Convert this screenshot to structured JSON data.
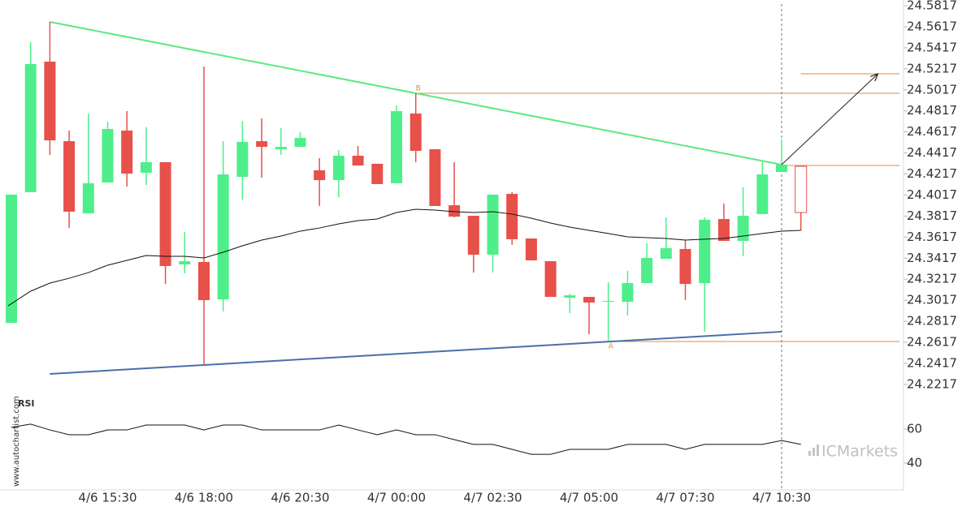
{
  "chart_data": [
    {
      "type": "candlestick",
      "categories": [
        null,
        null,
        null,
        null,
        null,
        "4/6 15:30",
        null,
        null,
        null,
        null,
        "4/6 18:00",
        null,
        null,
        null,
        null,
        "4/6 20:30",
        null,
        null,
        null,
        null,
        "4/7 00:00",
        null,
        null,
        null,
        null,
        "4/7 02:30",
        null,
        null,
        null,
        null,
        "4/7 05:00",
        null,
        null,
        null,
        null,
        "4/7 07:30",
        null,
        null,
        null,
        null,
        "4/7 10:30",
        null
      ],
      "open": [
        24.2802,
        24.4044,
        24.5285,
        24.4529,
        24.3843,
        24.4136,
        24.463,
        24.4229,
        24.4329,
        24.3358,
        24.3381,
        24.3026,
        24.419,
        24.4529,
        24.4452,
        24.4475,
        24.4252,
        24.4159,
        24.4391,
        24.4314,
        24.4129,
        24.4792,
        24.4452,
        24.392,
        24.382,
        24.345,
        24.4028,
        24.3604,
        24.3388,
        24.3041,
        24.3049,
        24.3003,
        24.3003,
        24.318,
        24.3411,
        24.3504,
        24.318,
        24.3789,
        24.3581,
        24.3836,
        24.4236,
        24.429
      ],
      "high": [
        24.4021,
        24.547,
        24.5663,
        24.463,
        24.4792,
        24.4714,
        24.4815,
        24.4661,
        24.4329,
        24.3666,
        24.5239,
        24.4529,
        24.4722,
        24.4745,
        24.4653,
        24.4614,
        24.4368,
        24.4445,
        24.4483,
        24.4314,
        24.4869,
        24.4984,
        24.4452,
        24.4329,
        24.382,
        24.4021,
        24.4044,
        24.3604,
        24.3388,
        24.308,
        24.3049,
        24.3188,
        24.3296,
        24.3558,
        24.3805,
        24.3589,
        24.3805,
        24.3936,
        24.409,
        24.4329,
        24.4545,
        24.429
      ],
      "low": [
        24.2802,
        24.4044,
        24.4398,
        24.3704,
        24.3843,
        24.4136,
        24.4098,
        24.4113,
        24.3172,
        24.3273,
        24.2401,
        24.291,
        24.3974,
        24.4182,
        24.4398,
        24.4475,
        24.3913,
        24.3997,
        24.4298,
        24.4121,
        24.4129,
        24.4329,
        24.3913,
        24.3805,
        24.328,
        24.328,
        24.3543,
        24.3396,
        24.3049,
        24.2895,
        24.2695,
        24.2633,
        24.2872,
        24.318,
        24.3411,
        24.3018,
        24.2718,
        24.3581,
        24.3435,
        24.3836,
        24.4236,
        24.3681
      ],
      "close": [
        24.4021,
        24.5262,
        24.4537,
        24.3859,
        24.4129,
        24.4645,
        24.4221,
        24.4329,
        24.3342,
        24.3388,
        24.3018,
        24.4213,
        24.4522,
        24.4475,
        24.4475,
        24.456,
        24.4159,
        24.4391,
        24.4298,
        24.4121,
        24.4815,
        24.4437,
        24.3913,
        24.3812,
        24.345,
        24.4021,
        24.3597,
        24.3396,
        24.3049,
        24.3064,
        24.2995,
        24.3011,
        24.318,
        24.3419,
        24.3512,
        24.3172,
        24.3782,
        24.3581,
        24.382,
        24.4213,
        24.4306,
        24.3851
      ],
      "up_color": "#4eef8a",
      "down_color": "#e8504a",
      "ma": {
        "color": "#111111",
        "values": [
          24.2964,
          24.3103,
          24.318,
          24.3226,
          24.328,
          24.335,
          24.3396,
          24.3442,
          24.3435,
          24.3435,
          24.3419,
          24.3473,
          24.3535,
          24.3589,
          24.3627,
          24.3674,
          24.3704,
          24.3743,
          24.3774,
          24.3789,
          24.3851,
          24.3882,
          24.3874,
          24.3859,
          24.3851,
          24.3859,
          24.3836,
          24.3797,
          24.3751,
          24.3712,
          24.3681,
          24.3651,
          24.362,
          24.3612,
          24.3604,
          24.3589,
          24.3597,
          24.3604,
          24.3627,
          24.3651,
          24.3674,
          24.3681
        ]
      },
      "trendlines": [
        {
          "color": "#5ee882",
          "start": {
            "index": 2,
            "price": 24.5663
          },
          "end": {
            "index": 40,
            "price": 24.4306
          }
        },
        {
          "color": "#4a6fa8",
          "start": {
            "index": 2,
            "price": 24.2317
          },
          "end": {
            "index": 40,
            "price": 24.2718
          }
        }
      ],
      "levels": [
        {
          "label": "B",
          "value": 24.4984,
          "from": 21
        },
        {
          "label": "A",
          "value": 24.2625,
          "from": 31
        },
        {
          "value": 24.4298,
          "from": 40
        },
        {
          "value": 24.5169,
          "from": 41
        }
      ],
      "level_color": "#e08a3c",
      "arrow": {
        "from": {
          "index": 40,
          "price": 24.4306
        },
        "to": {
          "index": 45,
          "price": 24.5169
        }
      },
      "ylim": [
        24.2093,
        24.5871
      ],
      "yticks": [
        24.5817,
        24.5617,
        24.5417,
        24.5217,
        24.5017,
        24.4817,
        24.4617,
        24.4417,
        24.4217,
        24.4017,
        24.3817,
        24.3617,
        24.3417,
        24.3217,
        24.3017,
        24.2817,
        24.2617,
        24.2417,
        24.2217
      ]
    },
    {
      "type": "line",
      "title": "RSI",
      "color": "#111111",
      "values": [
        61,
        62.9,
        59.5,
        56.7,
        56.7,
        59.5,
        59.5,
        62.4,
        62.4,
        62.4,
        59.5,
        62.4,
        62.4,
        59.5,
        59.5,
        59.5,
        59.5,
        62.4,
        59.5,
        56.7,
        59.5,
        56.7,
        56.7,
        53.8,
        51,
        51,
        48.1,
        45.2,
        45.2,
        48.1,
        48.1,
        48.1,
        51,
        51,
        51,
        48.1,
        51,
        51,
        51,
        51,
        53.3,
        51
      ],
      "ylim": [
        26.2,
        80
      ],
      "yticks": [
        60,
        40
      ]
    }
  ],
  "watermark": "www.autochartist.com",
  "logo": "ICMarkets"
}
